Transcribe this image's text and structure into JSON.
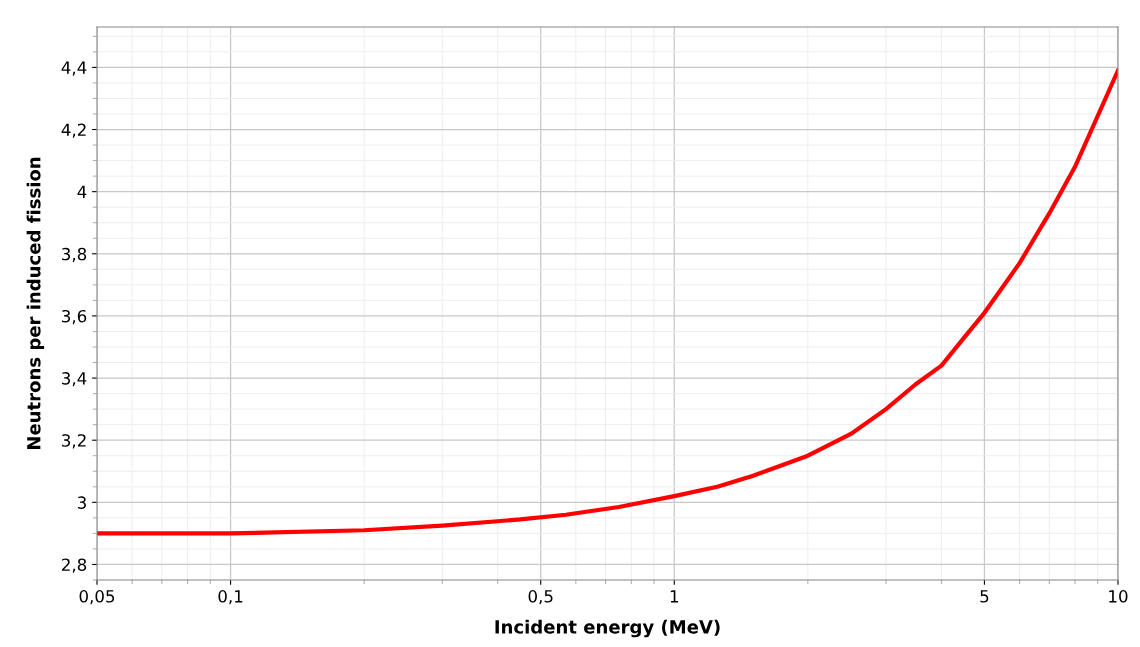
{
  "chart_data": {
    "type": "line",
    "xlabel": "Incident energy (MeV)",
    "ylabel": "Neutrons per induced fission",
    "log": "x",
    "grid": true,
    "marker": "none",
    "line_style": "solid",
    "xlim": [
      0.05,
      10
    ],
    "xticks": [
      {
        "value": 0.05,
        "label": "0,05"
      },
      {
        "value": 0.1,
        "label": "0,1"
      },
      {
        "value": 0.5,
        "label": "0,5"
      },
      1,
      5,
      10
    ],
    "ylim": [
      2.75,
      4.53
    ],
    "yticks": [
      {
        "value": 2.8,
        "label": "2,8"
      },
      3,
      {
        "value": 3.2,
        "label": "3,2"
      },
      {
        "value": 3.4,
        "label": "3,4"
      },
      {
        "value": 3.6,
        "label": "3,6"
      },
      {
        "value": 3.8,
        "label": "3,8"
      },
      4,
      {
        "value": 4.2,
        "label": "4,2"
      },
      {
        "value": 4.4,
        "label": "4,4"
      }
    ],
    "x": [
      0.05,
      0.1,
      0.2,
      0.3,
      0.45,
      0.57,
      0.75,
      1.0,
      1.25,
      1.5,
      2.0,
      2.5,
      3,
      3.5,
      4,
      4.5,
      5,
      6,
      7,
      8,
      10
    ],
    "series": [
      {
        "color": "#ff0000",
        "values": [
          2.9,
          2.9,
          2.91,
          2.925,
          2.945,
          2.96,
          2.985,
          3.02,
          3.05,
          3.085,
          3.15,
          3.22,
          3.3,
          3.38,
          3.44,
          3.53,
          3.61,
          3.77,
          3.93,
          4.08,
          4.39
        ]
      }
    ]
  }
}
